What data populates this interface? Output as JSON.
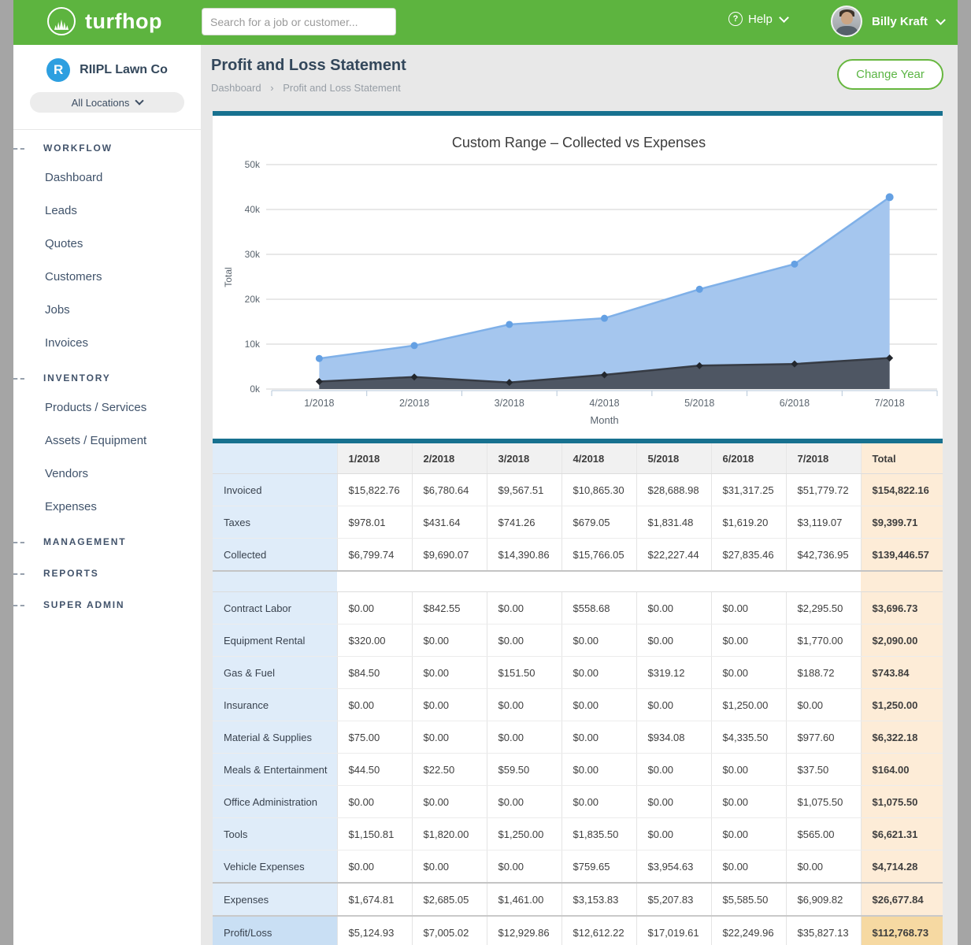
{
  "header": {
    "brand": "turfhop",
    "search_placeholder": "Search for a job or customer...",
    "help_label": "Help",
    "user_name": "Billy Kraft"
  },
  "sidebar": {
    "company_initial": "R",
    "company_name": "RIIPL Lawn Co",
    "location_filter": "All Locations",
    "sections": [
      {
        "label": "WORKFLOW",
        "items": [
          "Dashboard",
          "Leads",
          "Quotes",
          "Customers",
          "Jobs",
          "Invoices"
        ]
      },
      {
        "label": "INVENTORY",
        "items": [
          "Products / Services",
          "Assets / Equipment",
          "Vendors",
          "Expenses"
        ]
      },
      {
        "label": "MANAGEMENT",
        "items": []
      },
      {
        "label": "REPORTS",
        "items": []
      },
      {
        "label": "SUPER ADMIN",
        "items": []
      }
    ]
  },
  "page": {
    "title": "Profit and Loss Statement",
    "breadcrumb_items": [
      "Dashboard",
      "Profit and Loss Statement"
    ],
    "breadcrumb_separator": "›",
    "change_year_label": "Change Year"
  },
  "colors": {
    "brand_green": "#5db43f",
    "teal_bar": "#17718f",
    "collected_fill": "#a5c6ee",
    "collected_line": "#7fb0e8",
    "collected_marker": "#64a0e3",
    "expenses_fill": "#4e5663",
    "expenses_line": "#363b44",
    "expenses_marker": "#23272d",
    "label_column_bg": "#dfecf9",
    "total_column_bg": "#fdecd7",
    "profit_label_bg": "#c9dff4",
    "profit_total_bg": "#f6d9a2"
  },
  "chart_data": {
    "type": "area",
    "title": "Custom Range – Collected vs Expenses",
    "x_categories": [
      "1/2018",
      "2/2018",
      "3/2018",
      "4/2018",
      "5/2018",
      "6/2018",
      "7/2018"
    ],
    "series": [
      {
        "name": "Collected",
        "values": [
          6799.74,
          9690.07,
          14390.86,
          15766.05,
          22227.44,
          27835.46,
          42736.95
        ]
      },
      {
        "name": "Expenses",
        "values": [
          1674.81,
          2685.05,
          1461.0,
          3153.83,
          5207.83,
          5585.5,
          6909.82
        ]
      }
    ],
    "xlabel": "Month",
    "ylabel": "Total",
    "ylim": [
      0,
      50000
    ],
    "ytick_labels": [
      "0k",
      "10k",
      "20k",
      "30k",
      "40k",
      "50k"
    ],
    "grid": true,
    "legend": false
  },
  "table": {
    "columns": [
      "",
      "1/2018",
      "2/2018",
      "3/2018",
      "4/2018",
      "5/2018",
      "6/2018",
      "7/2018",
      "Total"
    ],
    "rows": [
      {
        "kind": "income",
        "label": "Invoiced",
        "values": [
          "$15,822.76",
          "$6,780.64",
          "$9,567.51",
          "$10,865.30",
          "$28,688.98",
          "$31,317.25",
          "$51,779.72"
        ],
        "total": "$154,822.16"
      },
      {
        "kind": "income",
        "label": "Taxes",
        "values": [
          "$978.01",
          "$431.64",
          "$741.26",
          "$679.05",
          "$1,831.48",
          "$1,619.20",
          "$3,119.07"
        ],
        "total": "$9,399.71"
      },
      {
        "kind": "income",
        "label": "Collected",
        "values": [
          "$6,799.74",
          "$9,690.07",
          "$14,390.86",
          "$15,766.05",
          "$22,227.44",
          "$27,835.46",
          "$42,736.95"
        ],
        "total": "$139,446.57"
      },
      {
        "kind": "spacer",
        "label": "",
        "values": [
          "",
          "",
          "",
          "",
          "",
          "",
          ""
        ],
        "total": ""
      },
      {
        "kind": "expense",
        "label": "Contract Labor",
        "values": [
          "$0.00",
          "$842.55",
          "$0.00",
          "$558.68",
          "$0.00",
          "$0.00",
          "$2,295.50"
        ],
        "total": "$3,696.73"
      },
      {
        "kind": "expense",
        "label": "Equipment Rental",
        "values": [
          "$320.00",
          "$0.00",
          "$0.00",
          "$0.00",
          "$0.00",
          "$0.00",
          "$1,770.00"
        ],
        "total": "$2,090.00"
      },
      {
        "kind": "expense",
        "label": "Gas & Fuel",
        "values": [
          "$84.50",
          "$0.00",
          "$151.50",
          "$0.00",
          "$319.12",
          "$0.00",
          "$188.72"
        ],
        "total": "$743.84"
      },
      {
        "kind": "expense",
        "label": "Insurance",
        "values": [
          "$0.00",
          "$0.00",
          "$0.00",
          "$0.00",
          "$0.00",
          "$1,250.00",
          "$0.00"
        ],
        "total": "$1,250.00"
      },
      {
        "kind": "expense",
        "label": "Material & Supplies",
        "values": [
          "$75.00",
          "$0.00",
          "$0.00",
          "$0.00",
          "$934.08",
          "$4,335.50",
          "$977.60"
        ],
        "total": "$6,322.18"
      },
      {
        "kind": "expense",
        "label": "Meals & Entertainment",
        "values": [
          "$44.50",
          "$22.50",
          "$59.50",
          "$0.00",
          "$0.00",
          "$0.00",
          "$37.50"
        ],
        "total": "$164.00"
      },
      {
        "kind": "expense",
        "label": "Office Administration",
        "values": [
          "$0.00",
          "$0.00",
          "$0.00",
          "$0.00",
          "$0.00",
          "$0.00",
          "$1,075.50"
        ],
        "total": "$1,075.50"
      },
      {
        "kind": "expense",
        "label": "Tools",
        "values": [
          "$1,150.81",
          "$1,820.00",
          "$1,250.00",
          "$1,835.50",
          "$0.00",
          "$0.00",
          "$565.00"
        ],
        "total": "$6,621.31"
      },
      {
        "kind": "expense",
        "label": "Vehicle Expenses",
        "values": [
          "$0.00",
          "$0.00",
          "$0.00",
          "$759.65",
          "$3,954.63",
          "$0.00",
          "$0.00"
        ],
        "total": "$4,714.28"
      },
      {
        "kind": "summary",
        "label": "Expenses",
        "values": [
          "$1,674.81",
          "$2,685.05",
          "$1,461.00",
          "$3,153.83",
          "$5,207.83",
          "$5,585.50",
          "$6,909.82"
        ],
        "total": "$26,677.84"
      },
      {
        "kind": "profit",
        "label": "Profit/Loss",
        "values": [
          "$5,124.93",
          "$7,005.02",
          "$12,929.86",
          "$12,612.22",
          "$17,019.61",
          "$22,249.96",
          "$35,827.13"
        ],
        "total": "$112,768.73"
      }
    ]
  }
}
